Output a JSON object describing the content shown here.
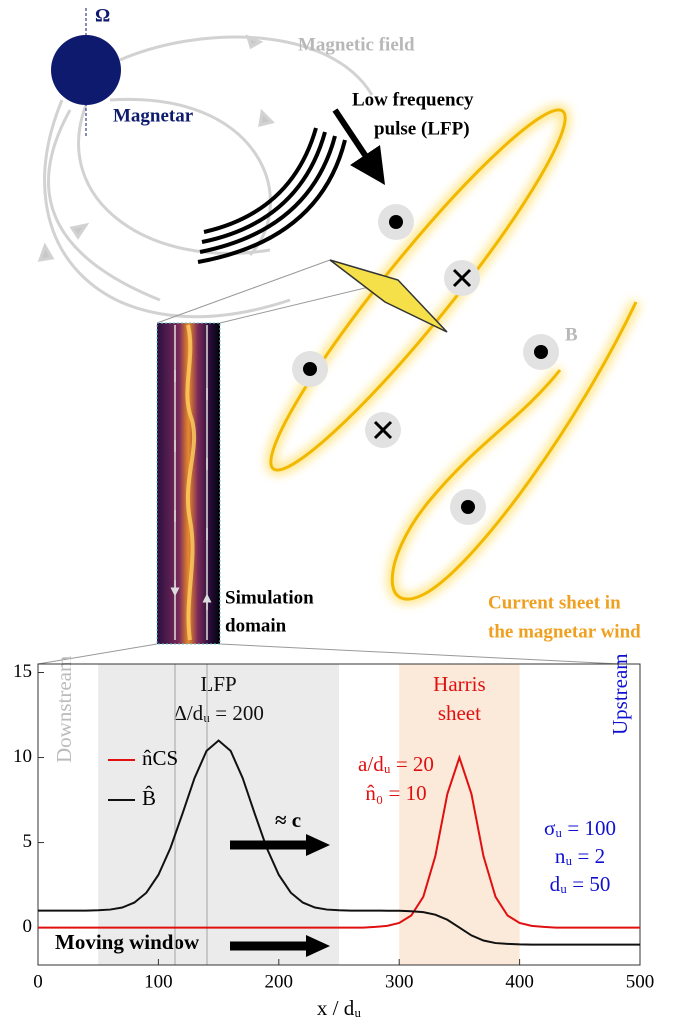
{
  "diagram": {
    "omega": "Ω",
    "magnetar": "Magnetar",
    "magnetic_field": "Magnetic field",
    "lfp": [
      "Low frequency",
      "pulse (LFP)"
    ],
    "b_field": "B",
    "simulation": [
      "Simulation",
      "domain"
    ],
    "current_sheet": [
      "Current sheet in",
      "the magnetar wind"
    ]
  },
  "chart_data": {
    "type": "line",
    "xlabel": "x / dᵤ",
    "x": [
      0,
      10,
      20,
      30,
      40,
      50,
      60,
      70,
      80,
      90,
      100,
      110,
      120,
      130,
      140,
      150,
      160,
      170,
      180,
      190,
      200,
      210,
      220,
      230,
      240,
      250,
      260,
      270,
      280,
      290,
      300,
      310,
      320,
      330,
      340,
      350,
      360,
      370,
      380,
      390,
      400,
      410,
      420,
      430,
      440,
      450,
      460,
      470,
      480,
      490,
      500
    ],
    "series": [
      {
        "name": "n̂CS",
        "color": "#e01010",
        "values": [
          0,
          0,
          0,
          0,
          0,
          0,
          0,
          0,
          0,
          0,
          0,
          0,
          0,
          0,
          0,
          0,
          0,
          0,
          0,
          0,
          0,
          0,
          0,
          0,
          0,
          0,
          0,
          0,
          0.04,
          0.1,
          0.27,
          0.71,
          1.81,
          4.2,
          7.86,
          10,
          7.86,
          4.2,
          1.81,
          0.71,
          0.27,
          0.1,
          0.04,
          0,
          0,
          0,
          0,
          0,
          0,
          0,
          0
        ]
      },
      {
        "name": "B̂",
        "color": "#111111",
        "values": [
          1,
          1,
          1,
          1,
          1,
          1.02,
          1.06,
          1.18,
          1.47,
          2.05,
          3.1,
          4.68,
          6.7,
          8.79,
          10.39,
          11,
          10.39,
          8.79,
          6.7,
          4.68,
          3.1,
          2.05,
          1.47,
          1.18,
          1.06,
          1.02,
          1,
          1,
          1,
          0.99,
          0.99,
          0.96,
          0.91,
          0.76,
          0.46,
          0,
          -0.46,
          -0.76,
          -0.91,
          -0.96,
          -0.99,
          -1,
          -1,
          -1,
          -1,
          -1,
          -1,
          -1,
          -1,
          -1,
          -1
        ]
      }
    ],
    "bands": [
      {
        "x0": 50,
        "x1": 250,
        "color": "#ebebeb",
        "label": [
          "LFP",
          "Δ/dᵤ = 200"
        ],
        "label_color": "#111111"
      },
      {
        "x0": 300,
        "x1": 400,
        "color": "#fbe9d9",
        "label": [
          "Harris",
          "sheet"
        ],
        "label_color": "#e01010"
      }
    ],
    "annotations": [
      "Downstream",
      "Upstream",
      "a/dᵤ = 20",
      "n̂₀ = 10",
      "σᵤ = 100",
      "nᵤ = 2",
      "dᵤ = 50",
      "≈ c",
      "Moving window"
    ],
    "xlim": [
      0,
      500
    ],
    "xticks": [
      0,
      100,
      200,
      300,
      400,
      500
    ],
    "ylim": [
      -2.2,
      15.5
    ],
    "yticks": [
      0,
      5,
      10,
      15
    ]
  }
}
